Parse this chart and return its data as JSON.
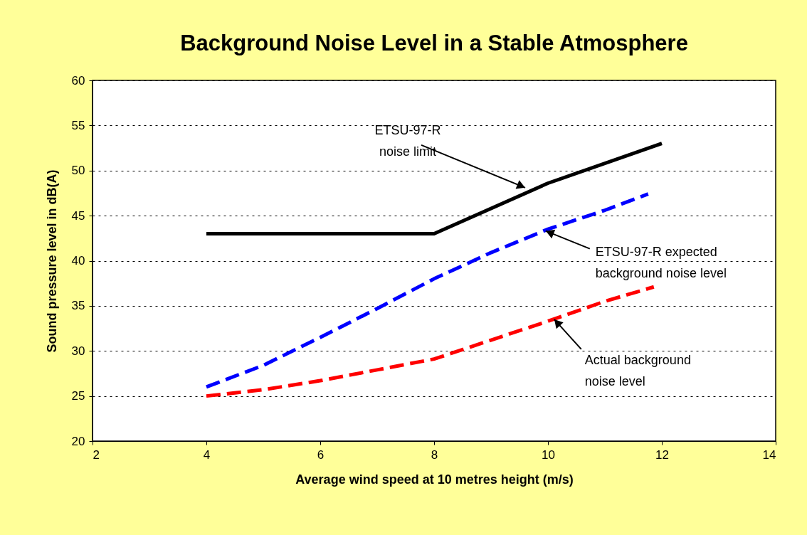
{
  "chart_data": {
    "type": "line",
    "title": "Background Noise Level in a Stable Atmosphere",
    "xlabel": "Average wind speed at 10 metres height (m/s)",
    "ylabel": "Sound pressure level in dB(A)",
    "series": [
      {
        "type": "line",
        "line_style": "solid",
        "color": "#000000",
        "x": [
          4,
          8,
          10,
          12
        ],
        "values": [
          43,
          43,
          48.6,
          53
        ]
      },
      {
        "type": "line",
        "line_style": "dashed",
        "color": "#0000ff",
        "x": [
          4,
          5,
          6,
          7,
          8,
          9,
          10,
          11,
          11.76
        ],
        "values": [
          26,
          28.4,
          31.5,
          34.7,
          38,
          40.9,
          43.5,
          45.6,
          47.4
        ]
      },
      {
        "type": "line",
        "line_style": "dashed",
        "color": "#ff0000",
        "x": [
          4,
          5,
          6,
          7,
          8,
          9,
          10,
          11,
          11.86
        ],
        "values": [
          25,
          25.7,
          26.7,
          27.9,
          29.1,
          31.2,
          33.3,
          35.5,
          37.1
        ]
      }
    ],
    "xlim": [
      2,
      14
    ],
    "xticks": [
      2,
      4,
      6,
      8,
      10,
      12,
      14
    ],
    "ylim": [
      20,
      60
    ],
    "yticks": [
      20,
      25,
      30,
      35,
      40,
      45,
      50,
      55,
      60
    ],
    "grid": "y",
    "legend": false,
    "marker": "none",
    "annotations": [
      {
        "text": "ETSU-97-R\nnoise limit",
        "x": 9.6,
        "y": 48.1
      },
      {
        "text": "ETSU-97-R expected\nbackground noise level",
        "x": 9.96,
        "y": 43.3
      },
      {
        "text": "Actual background\nnoise level",
        "x": 10.11,
        "y": 33.5
      }
    ]
  }
}
